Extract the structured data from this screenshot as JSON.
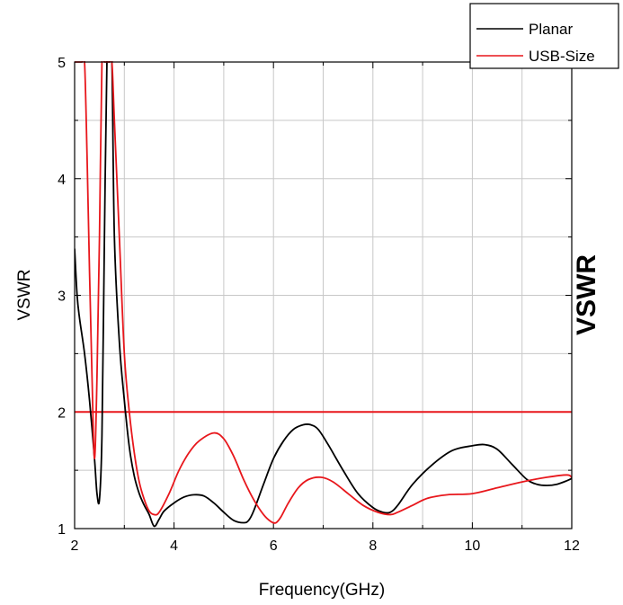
{
  "chart_data": {
    "type": "line",
    "xlabel": "Frequency(GHz)",
    "ylabel": "VSWR",
    "ylabel_right": "VSWR",
    "xlim": [
      2,
      12
    ],
    "ylim": [
      1,
      5
    ],
    "xticks": [
      2,
      4,
      6,
      8,
      10,
      12
    ],
    "yticks": [
      1,
      2,
      3,
      4,
      5
    ],
    "grid": true,
    "legend_position": "top-right",
    "reference_line": {
      "y": 2,
      "color": "#e8171c"
    },
    "series": [
      {
        "name": "Planar",
        "color": "#000000",
        "x": [
          2.0,
          2.05,
          2.1,
          2.2,
          2.3,
          2.4,
          2.45,
          2.5,
          2.55,
          2.6,
          2.65,
          2.7,
          2.75,
          2.8,
          2.9,
          3.0,
          3.1,
          3.2,
          3.3,
          3.4,
          3.5,
          3.6,
          3.7,
          3.8,
          4.0,
          4.2,
          4.4,
          4.6,
          4.8,
          5.0,
          5.2,
          5.4,
          5.5,
          5.6,
          5.8,
          6.0,
          6.2,
          6.4,
          6.6,
          6.75,
          6.9,
          7.1,
          7.4,
          7.7,
          8.0,
          8.2,
          8.35,
          8.5,
          8.8,
          9.2,
          9.6,
          10.0,
          10.25,
          10.5,
          10.8,
          11.1,
          11.3,
          11.5,
          11.7,
          11.9,
          12.0
        ],
        "y": [
          3.4,
          3.0,
          2.8,
          2.5,
          2.1,
          1.6,
          1.3,
          1.25,
          1.8,
          3.5,
          5.0,
          5.0,
          5.0,
          3.5,
          2.6,
          2.1,
          1.7,
          1.45,
          1.3,
          1.2,
          1.12,
          1.02,
          1.08,
          1.15,
          1.22,
          1.27,
          1.29,
          1.28,
          1.22,
          1.14,
          1.07,
          1.05,
          1.07,
          1.15,
          1.38,
          1.6,
          1.75,
          1.85,
          1.89,
          1.89,
          1.85,
          1.72,
          1.5,
          1.3,
          1.18,
          1.14,
          1.14,
          1.2,
          1.38,
          1.55,
          1.67,
          1.71,
          1.72,
          1.68,
          1.55,
          1.42,
          1.38,
          1.37,
          1.38,
          1.41,
          1.43
        ]
      },
      {
        "name": "USB-Size",
        "color": "#e8171c",
        "x": [
          2.0,
          2.05,
          2.1,
          2.15,
          2.2,
          2.25,
          2.3,
          2.35,
          2.4,
          2.45,
          2.5,
          2.55,
          2.6,
          2.65,
          2.7,
          2.75,
          2.8,
          2.9,
          3.0,
          3.1,
          3.2,
          3.3,
          3.4,
          3.5,
          3.6,
          3.7,
          3.9,
          4.1,
          4.3,
          4.5,
          4.8,
          5.0,
          5.2,
          5.4,
          5.6,
          5.8,
          5.95,
          6.05,
          6.15,
          6.3,
          6.5,
          6.7,
          6.95,
          7.2,
          7.5,
          7.8,
          8.1,
          8.35,
          8.5,
          8.8,
          9.1,
          9.5,
          10.0,
          10.5,
          11.0,
          11.5,
          11.9,
          12.0
        ],
        "y": [
          5.0,
          5.0,
          5.0,
          5.0,
          5.0,
          4.2,
          3.2,
          2.3,
          1.6,
          2.3,
          3.5,
          5.0,
          5.0,
          5.0,
          5.0,
          5.0,
          4.5,
          3.5,
          2.5,
          2.0,
          1.65,
          1.4,
          1.25,
          1.15,
          1.12,
          1.14,
          1.3,
          1.5,
          1.65,
          1.75,
          1.82,
          1.77,
          1.62,
          1.42,
          1.25,
          1.12,
          1.06,
          1.05,
          1.1,
          1.22,
          1.35,
          1.42,
          1.44,
          1.4,
          1.3,
          1.2,
          1.14,
          1.12,
          1.14,
          1.2,
          1.26,
          1.29,
          1.3,
          1.35,
          1.4,
          1.44,
          1.46,
          1.44
        ]
      }
    ]
  }
}
